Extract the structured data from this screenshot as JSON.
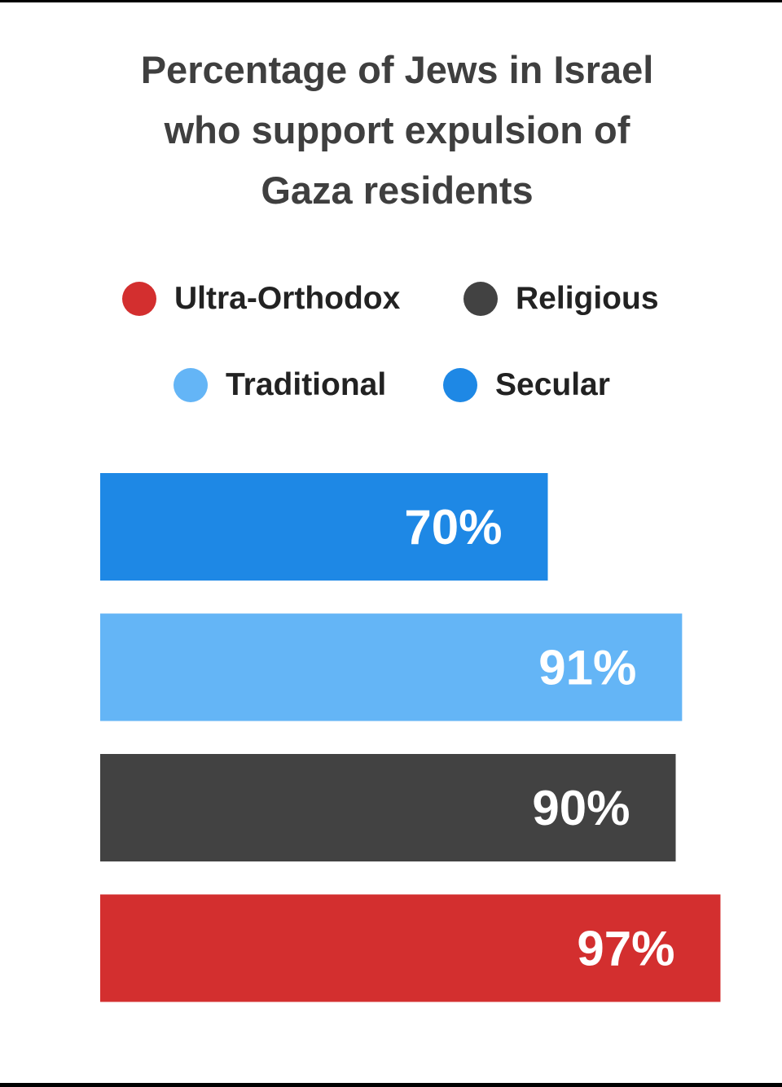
{
  "chart_data": {
    "type": "bar",
    "orientation": "horizontal",
    "title": "Percentage of Jews in Israel\nwho support expulsion of\nGaza residents",
    "legend": [
      {
        "name": "Ultra-Orthodox",
        "color": "#d32f2f"
      },
      {
        "name": "Religious",
        "color": "#424242"
      },
      {
        "name": "Traditional",
        "color": "#64b5f6"
      },
      {
        "name": "Secular",
        "color": "#1e88e5"
      }
    ],
    "legend_placement": "top",
    "categories": [
      "Secular",
      "Traditional",
      "Religious",
      "Ultra-Orthodox"
    ],
    "values": [
      70,
      91,
      90,
      97
    ],
    "data_labels": [
      "70%",
      "91%",
      "90%",
      "97%"
    ],
    "colors": [
      "#1e88e5",
      "#64b5f6",
      "#424242",
      "#d32f2f"
    ],
    "xlim": [
      0,
      100
    ],
    "xlabel": "",
    "ylabel": "",
    "grid": false,
    "axes_visible": false
  }
}
